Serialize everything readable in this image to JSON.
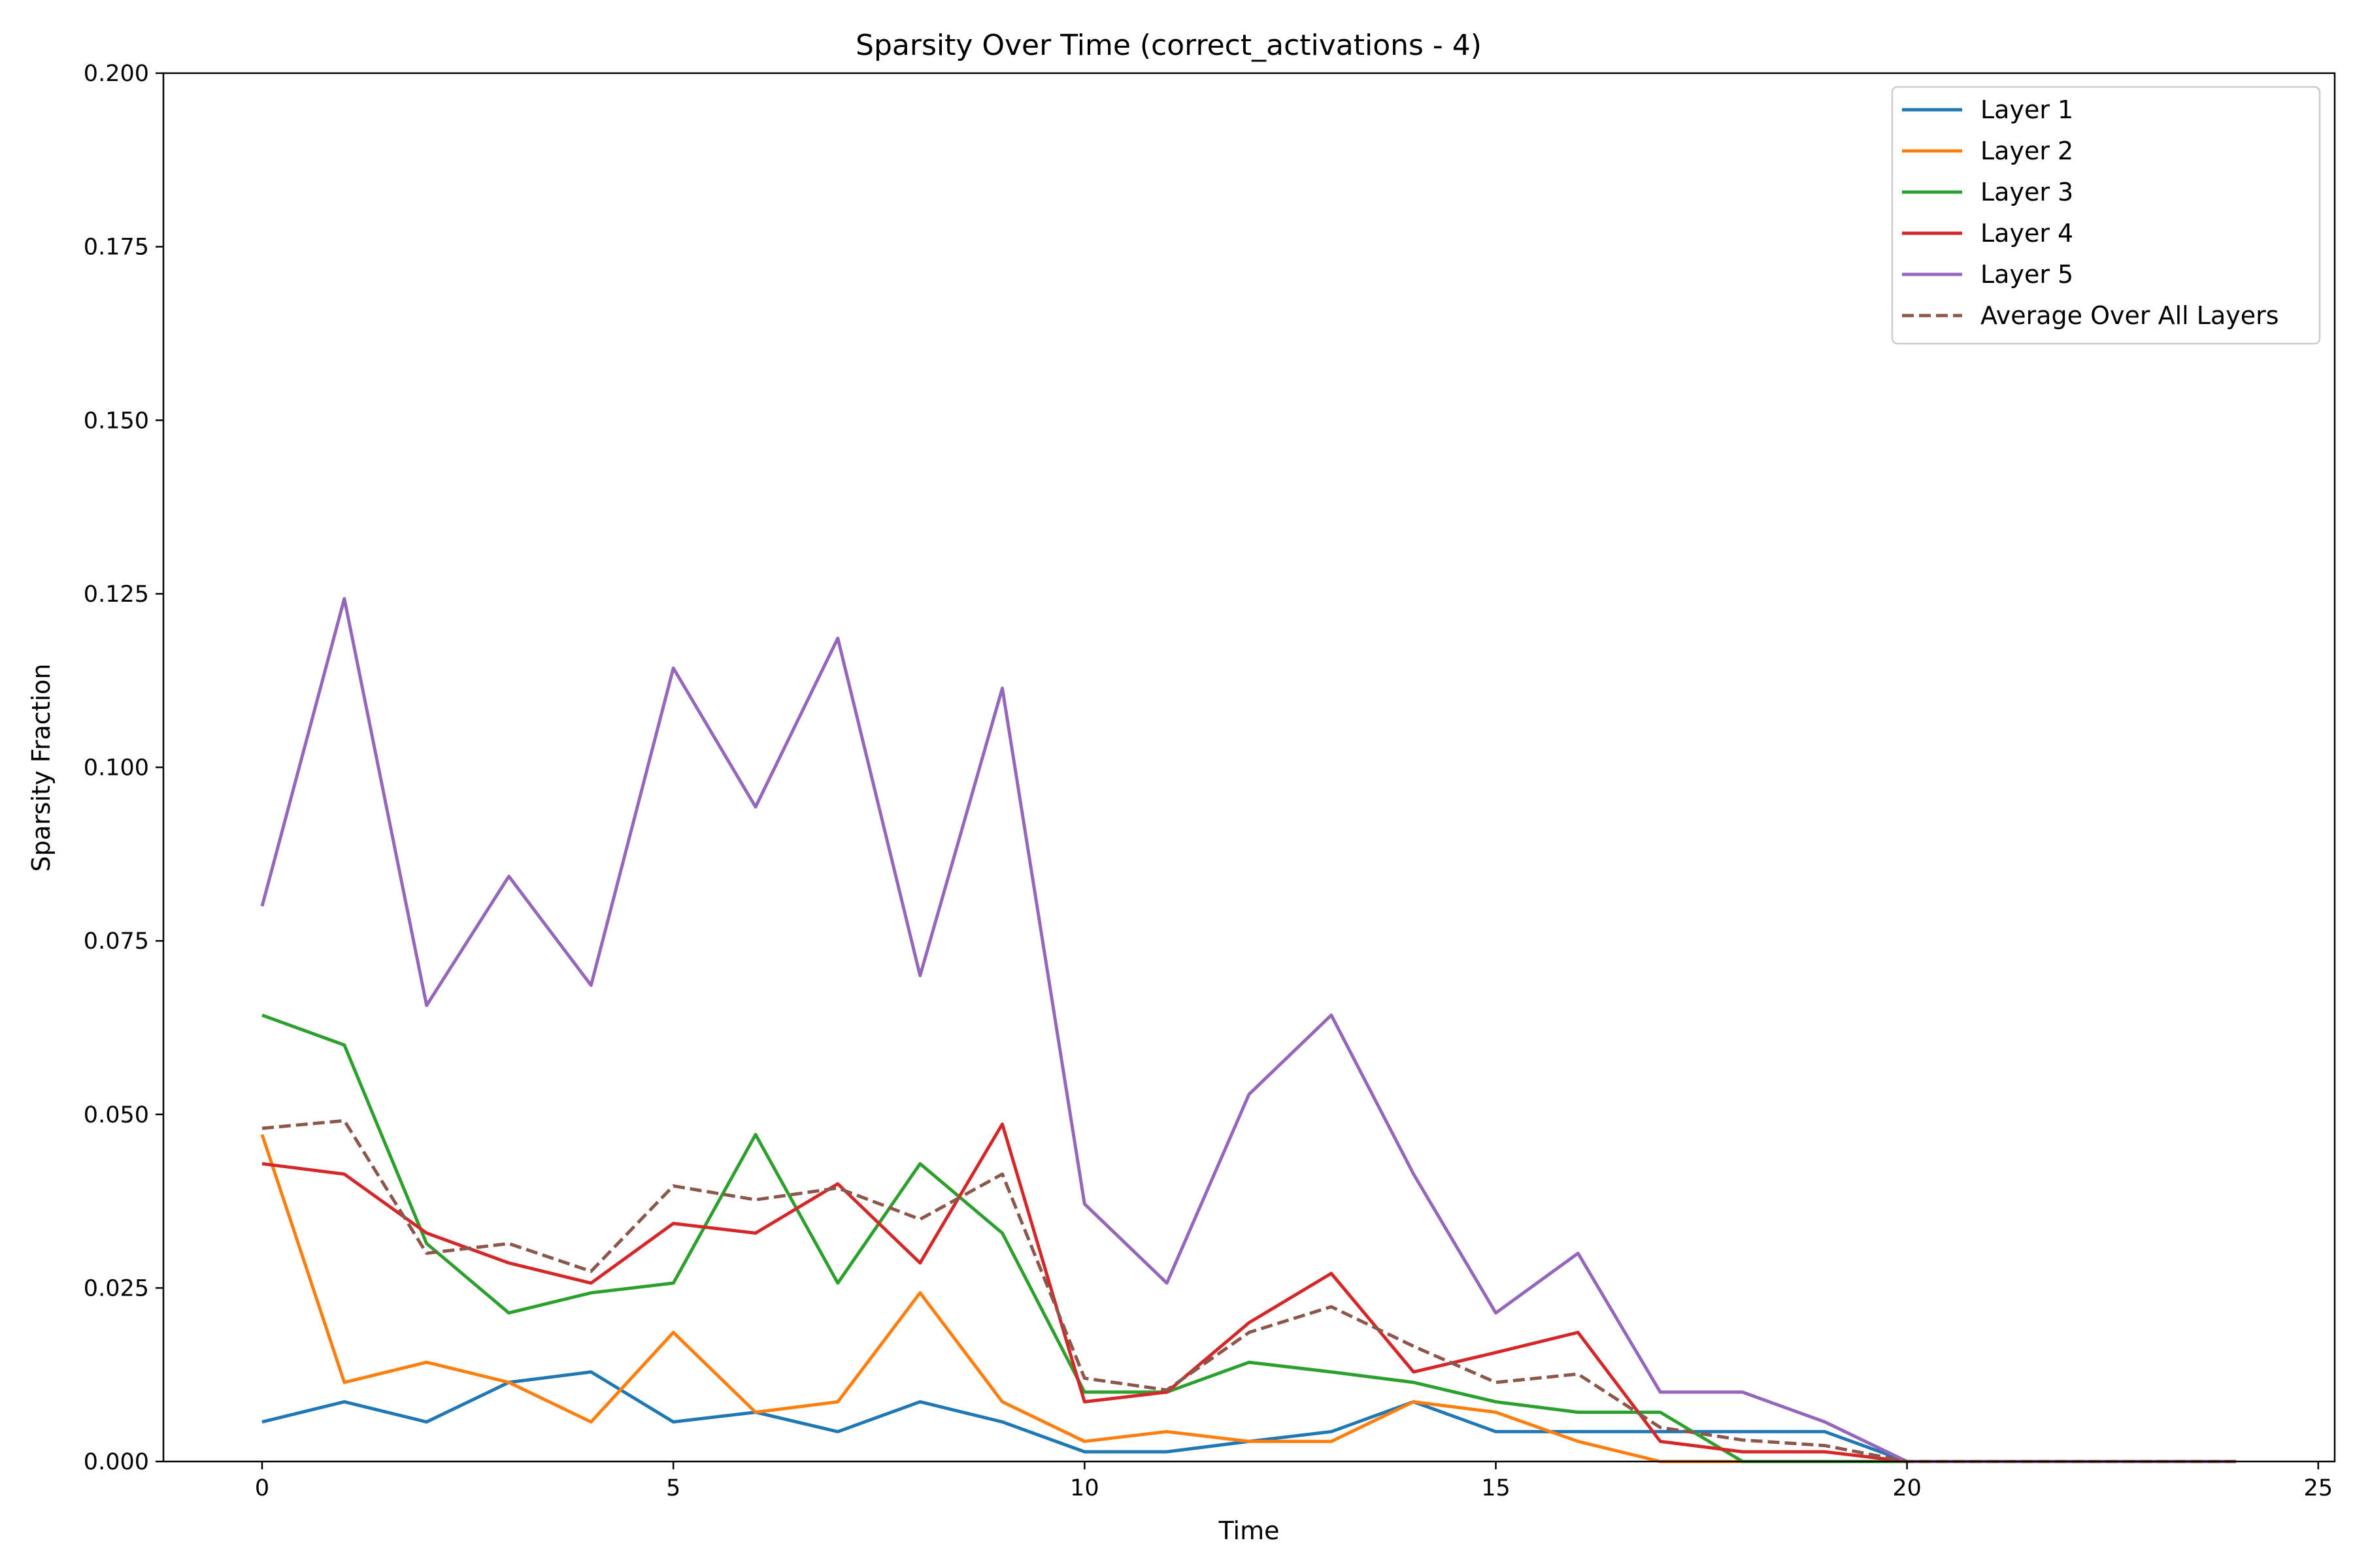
{
  "chart_data": {
    "type": "line",
    "title": "Sparsity Over Time (correct_activations - 4)",
    "xlabel": "Time",
    "ylabel": "Sparsity Fraction",
    "xlim": [
      -1.2,
      25.2
    ],
    "ylim": [
      0,
      0.2
    ],
    "xticks": [
      0,
      5,
      10,
      15,
      20,
      25
    ],
    "xtick_labels": [
      "0",
      "5",
      "10",
      "15",
      "20",
      "25"
    ],
    "yticks": [
      0,
      0.025,
      0.05,
      0.075,
      0.1,
      0.125,
      0.15,
      0.175,
      0.2
    ],
    "ytick_labels": [
      "0.000",
      "0.025",
      "0.050",
      "0.075",
      "0.100",
      "0.125",
      "0.150",
      "0.175",
      "0.200"
    ],
    "grid": false,
    "legend_position": "top-right",
    "x": [
      0,
      1,
      2,
      3,
      4,
      5,
      6,
      7,
      8,
      9,
      10,
      11,
      12,
      13,
      14,
      15,
      16,
      17,
      18,
      19,
      20,
      21,
      22,
      23,
      24
    ],
    "series": [
      {
        "name": "Layer 1",
        "color": "#1f77b4",
        "style": "solid",
        "values": [
          0.0057,
          0.0086,
          0.0057,
          0.0114,
          0.0129,
          0.0057,
          0.0071,
          0.0043,
          0.0086,
          0.0057,
          0.0014,
          0.0014,
          0.0029,
          0.0043,
          0.0086,
          0.0043,
          0.0043,
          0.0043,
          0.0043,
          0.0043,
          0.0,
          0.0,
          0.0,
          0.0,
          0.0
        ]
      },
      {
        "name": "Layer 2",
        "color": "#ff7f0e",
        "style": "solid",
        "values": [
          0.0471,
          0.0114,
          0.0143,
          0.0114,
          0.0057,
          0.0186,
          0.0071,
          0.0086,
          0.0243,
          0.0086,
          0.0029,
          0.0043,
          0.0029,
          0.0029,
          0.0086,
          0.0071,
          0.0029,
          0.0,
          0.0,
          0.0,
          0.0,
          0.0,
          0.0,
          0.0,
          0.0
        ]
      },
      {
        "name": "Layer 3",
        "color": "#2ca02c",
        "style": "solid",
        "values": [
          0.0643,
          0.06,
          0.0314,
          0.0214,
          0.0243,
          0.0257,
          0.0471,
          0.0257,
          0.0429,
          0.0329,
          0.01,
          0.01,
          0.0143,
          0.0129,
          0.0114,
          0.0086,
          0.0071,
          0.0071,
          0.0,
          0.0,
          0.0,
          0.0,
          0.0,
          0.0,
          0.0
        ]
      },
      {
        "name": "Layer 4",
        "color": "#d62728",
        "style": "solid",
        "values": [
          0.0429,
          0.0414,
          0.0329,
          0.0286,
          0.0257,
          0.0343,
          0.0329,
          0.04,
          0.0286,
          0.0486,
          0.0086,
          0.01,
          0.02,
          0.0271,
          0.0129,
          0.0157,
          0.0186,
          0.0029,
          0.0014,
          0.0014,
          0.0,
          0.0,
          0.0,
          0.0,
          0.0
        ]
      },
      {
        "name": "Layer 5",
        "color": "#9467bd",
        "style": "solid",
        "values": [
          0.08,
          0.1243,
          0.0657,
          0.0843,
          0.0686,
          0.1143,
          0.0943,
          0.1186,
          0.07,
          0.1114,
          0.0371,
          0.0257,
          0.0529,
          0.0643,
          0.0414,
          0.0214,
          0.03,
          0.01,
          0.01,
          0.0057,
          0.0,
          0.0,
          0.0,
          0.0,
          0.0
        ]
      },
      {
        "name": "Average Over All Layers",
        "color": "#8c564b",
        "style": "dashed",
        "values": [
          0.048,
          0.0491,
          0.03,
          0.0314,
          0.0274,
          0.0397,
          0.0377,
          0.0394,
          0.0349,
          0.0414,
          0.012,
          0.0103,
          0.0186,
          0.0223,
          0.0166,
          0.0114,
          0.0126,
          0.0049,
          0.0031,
          0.0023,
          0.0,
          0.0,
          0.0,
          0.0,
          0.0
        ]
      }
    ]
  }
}
